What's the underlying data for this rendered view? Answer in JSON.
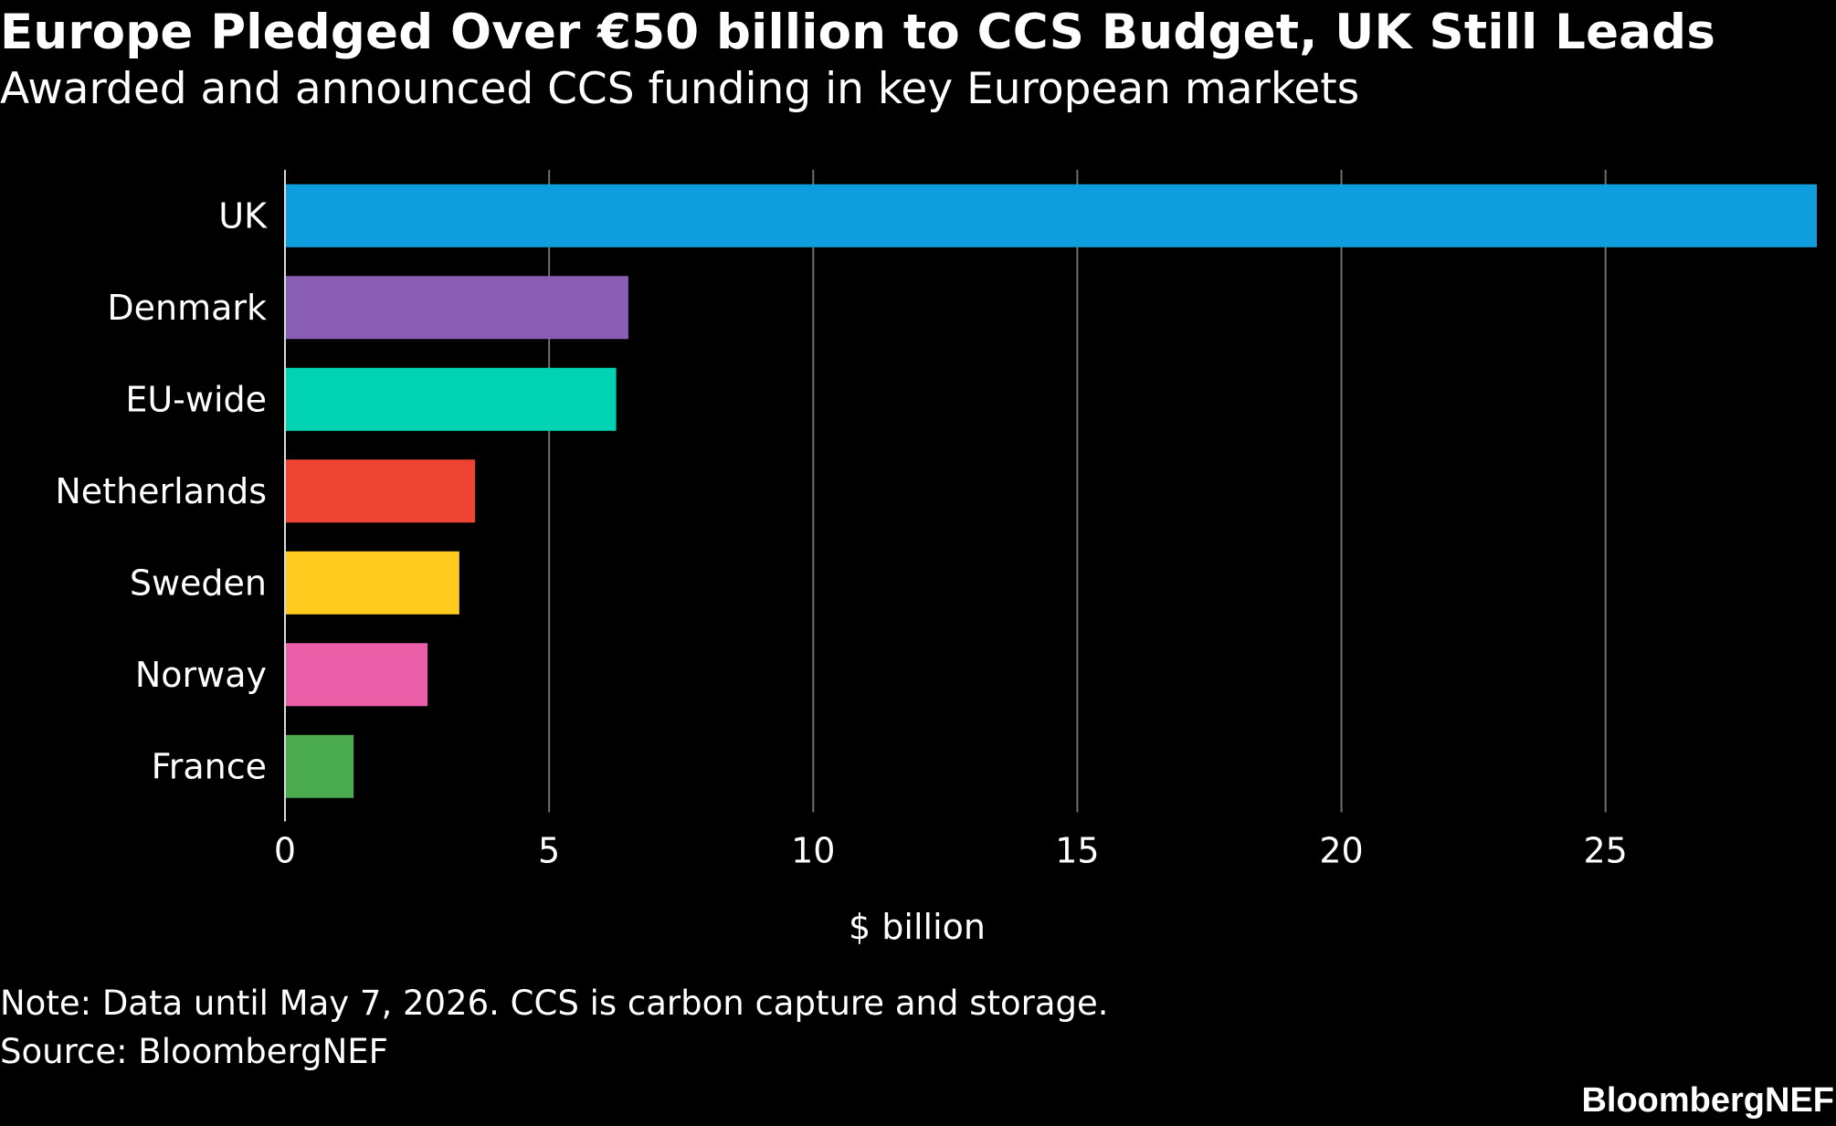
{
  "header": {
    "title": "Europe Pledged Over €50 billion to CCS Budget, UK Still Leads",
    "subtitle": "Awarded and announced CCS funding in key European markets"
  },
  "footer": {
    "note": "Note: Data until May 7, 2026. CCS is carbon capture and storage.",
    "source": "Source: BloombergNEF",
    "brand": "BloombergNEF"
  },
  "chart_data": {
    "type": "bar",
    "orientation": "horizontal",
    "title": "Europe Pledged Over €50 billion to CCS Budget, UK Still Leads",
    "subtitle": "Awarded and announced CCS funding in key European markets",
    "categories": [
      "UK",
      "Denmark",
      "EU-wide",
      "Netherlands",
      "Sweden",
      "Norway",
      "France"
    ],
    "values": [
      29.0,
      6.5,
      6.27,
      3.6,
      3.3,
      2.7,
      1.3
    ],
    "colors": [
      "#0e9edd",
      "#8a5db4",
      "#00d2b4",
      "#ee4433",
      "#ffcb1e",
      "#e95ea6",
      "#4aaa4e"
    ],
    "xlabel": "$ billion",
    "ylabel": "",
    "xlim": [
      0,
      29
    ],
    "xticks": [
      0,
      5,
      10,
      15,
      20,
      25
    ],
    "xtick_labels": [
      "0",
      "5",
      "10",
      "15",
      "20",
      "25"
    ],
    "grid": "vertical",
    "legend": "none"
  }
}
